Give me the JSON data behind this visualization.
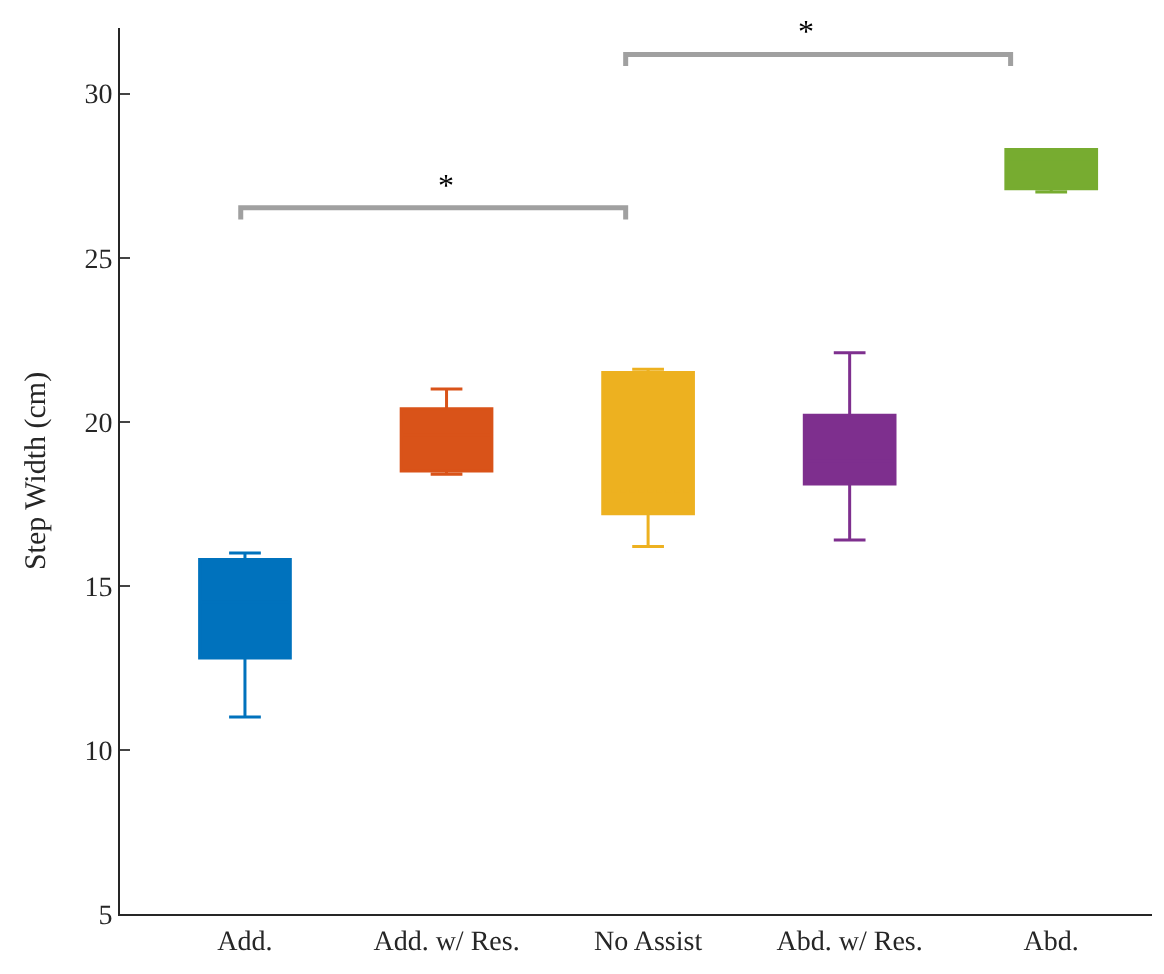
{
  "chart_data": {
    "type": "box",
    "ylabel": "Step Width (cm)",
    "categories": [
      "Add.",
      "Add. w/ Res.",
      "No Assist",
      "Abd. w/ Res.",
      "Abd."
    ],
    "colors": [
      "#0072bd",
      "#d95319",
      "#edb120",
      "#7e2f8e",
      "#77ac30"
    ],
    "boxes": [
      {
        "low": 11.0,
        "q1": 12.8,
        "median": 14.5,
        "q3": 15.8,
        "high": 16.0
      },
      {
        "low": 18.4,
        "q1": 18.5,
        "median": 19.6,
        "q3": 20.4,
        "high": 21.0
      },
      {
        "low": 16.2,
        "q1": 17.2,
        "median": 20.1,
        "q3": 21.5,
        "high": 21.6,
        "mean": 17.9
      },
      {
        "low": 16.4,
        "q1": 18.1,
        "median": 18.8,
        "q3": 20.2,
        "high": 22.1
      },
      {
        "low": 27.0,
        "q1": 27.1,
        "median": 28.0,
        "q3": 28.3,
        "high": 28.3
      }
    ],
    "ylim": [
      5,
      32
    ],
    "yticks": [
      5,
      10,
      15,
      20,
      25,
      30
    ],
    "annotations": [
      "*",
      "*"
    ]
  }
}
